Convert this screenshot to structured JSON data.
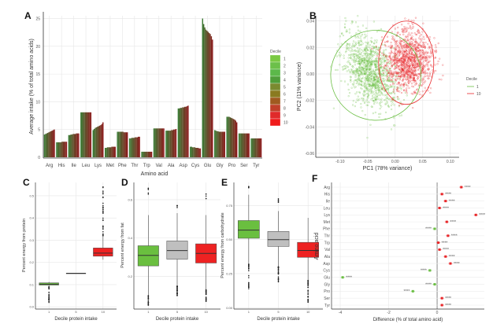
{
  "chart_data": [
    {
      "panel": "A",
      "type": "bar",
      "xlabel": "Amino acid",
      "ylabel": "Average intake (% of total amino acids)",
      "ylim": [
        0,
        25.5
      ],
      "yticks": [
        0,
        5,
        10,
        15,
        20,
        25
      ],
      "grid": true,
      "legend": {
        "title": "Decile",
        "position": "right",
        "entries": [
          "1",
          "2",
          "3",
          "4",
          "5",
          "6",
          "7",
          "8",
          "9",
          "10"
        ],
        "colors": [
          "#7ac943",
          "#6cc04a",
          "#5cb84a",
          "#4f9e3a",
          "#7a8a30",
          "#8a7a20",
          "#a05a20",
          "#c0402a",
          "#e02a2a",
          "#f01c1c"
        ]
      },
      "bar_colors": {
        "decile_1": "#3d7a35",
        "decile_10": "#8a1c1c"
      },
      "categories": [
        "Arg",
        "His",
        "Ile",
        "Leu",
        "Lys",
        "Met",
        "Phe",
        "Thr",
        "Trp",
        "Val",
        "Ala",
        "Asp",
        "Cys",
        "Glu",
        "Gly",
        "Pro",
        "Ser",
        "Tyr"
      ],
      "values_by_decile": [
        [
          4.1,
          4.2,
          4.3,
          4.4,
          4.5,
          4.6,
          4.7,
          4.8,
          4.9,
          5.0
        ],
        [
          2.7,
          2.7,
          2.7,
          2.7,
          2.7,
          2.8,
          2.8,
          2.8,
          2.8,
          2.8
        ],
        [
          4.0,
          4.0,
          4.1,
          4.1,
          4.2,
          4.2,
          4.2,
          4.3,
          4.3,
          4.3
        ],
        [
          8.1,
          8.1,
          8.1,
          8.1,
          8.1,
          8.1,
          8.1,
          8.1,
          8.1,
          8.1
        ],
        [
          4.9,
          5.1,
          5.3,
          5.4,
          5.5,
          5.6,
          5.7,
          5.8,
          6.0,
          6.3
        ],
        [
          1.7,
          1.7,
          1.8,
          1.8,
          1.8,
          1.8,
          1.9,
          1.9,
          1.9,
          1.9
        ],
        [
          4.6,
          4.6,
          4.6,
          4.6,
          4.6,
          4.6,
          4.5,
          4.5,
          4.5,
          4.5
        ],
        [
          3.4,
          3.4,
          3.5,
          3.5,
          3.5,
          3.6,
          3.6,
          3.6,
          3.7,
          3.7
        ],
        [
          1.0,
          1.0,
          1.0,
          1.0,
          1.0,
          1.0,
          1.0,
          1.0,
          1.0,
          1.0
        ],
        [
          5.2,
          5.2,
          5.2,
          5.2,
          5.2,
          5.2,
          5.2,
          5.2,
          5.2,
          5.2
        ],
        [
          4.8,
          4.8,
          4.8,
          4.8,
          4.8,
          4.9,
          4.9,
          5.0,
          5.0,
          5.1
        ],
        [
          8.8,
          8.8,
          8.9,
          8.9,
          9.0,
          9.0,
          9.1,
          9.1,
          9.2,
          9.3
        ],
        [
          1.9,
          1.9,
          1.8,
          1.8,
          1.8,
          1.7,
          1.7,
          1.7,
          1.6,
          1.6
        ],
        [
          25.0,
          24.0,
          23.4,
          23.0,
          22.8,
          22.6,
          22.4,
          22.2,
          21.8,
          21.2
        ],
        [
          4.9,
          4.8,
          4.7,
          4.7,
          4.6,
          4.6,
          4.6,
          4.6,
          4.6,
          4.6
        ],
        [
          7.3,
          7.3,
          7.3,
          7.2,
          7.1,
          7.0,
          6.9,
          6.8,
          6.6,
          6.3
        ],
        [
          4.3,
          4.3,
          4.3,
          4.3,
          4.3,
          4.3,
          4.3,
          4.3,
          4.3,
          4.3
        ],
        [
          3.4,
          3.4,
          3.4,
          3.4,
          3.4,
          3.4,
          3.4,
          3.4,
          3.4,
          3.4
        ]
      ]
    },
    {
      "panel": "B",
      "type": "scatter",
      "xlabel": "PC1 (78% variance)",
      "ylabel": "PC2 (11% variance)",
      "xlim": [
        -0.144,
        0.116
      ],
      "ylim": [
        -0.063,
        0.044
      ],
      "xticks": [
        "-0.10",
        "-0.05",
        "0.00",
        "0.05",
        "0.10"
      ],
      "yticks": [
        "-0.06",
        "-0.04",
        "-0.02",
        "0.00",
        "0.02",
        "0.04"
      ],
      "grid": true,
      "legend": {
        "title": "Decile",
        "position": "right"
      },
      "series": [
        {
          "name": "1",
          "color": "#6cbf45",
          "center": [
            -0.045,
            0.002
          ],
          "spread": [
            0.035,
            0.017
          ],
          "ellipse": {
            "center": [
              -0.035,
              -0.001
            ],
            "radii": [
              0.082,
              0.034
            ]
          }
        },
        {
          "name": "10",
          "color": "#e8272a",
          "center": [
            0.025,
            0.01
          ],
          "spread": [
            0.03,
            0.015
          ],
          "ellipse": {
            "center": [
              0.02,
              0.0085
            ],
            "radii": [
              0.05,
              0.0315
            ]
          }
        }
      ]
    },
    {
      "panel": "C",
      "type": "box",
      "xlabel": "Decile protein intake",
      "ylabel": "Percent energy from protein",
      "ylim": [
        -0.01,
        0.56
      ],
      "yticks": [
        "0.0",
        "0.1",
        "0.2",
        "0.3",
        "0.4",
        "0.5"
      ],
      "categories": [
        "1",
        "5",
        "10"
      ],
      "boxes": [
        {
          "q1": 0.098,
          "median": 0.102,
          "q3": 0.108,
          "lo": 0.09,
          "hi": 0.112,
          "outliers": [
            0.02,
            0.085
          ],
          "color": "#6abf3f"
        },
        {
          "q1": 0.15,
          "median": 0.151,
          "q3": 0.152,
          "lo": 0.15,
          "hi": 0.152,
          "outliers": [],
          "color": "#bfbfbf"
        },
        {
          "q1": 0.228,
          "median": 0.242,
          "q3": 0.265,
          "lo": 0.212,
          "hi": 0.32,
          "outliers": [
            0.32,
            0.54
          ],
          "color": "#ee2222"
        }
      ]
    },
    {
      "panel": "D",
      "type": "box",
      "xlabel": "Decile protein intake",
      "ylabel": "Percent energy from fat",
      "ylim": [
        0.03,
        0.69
      ],
      "yticks": [
        "0.2",
        "0.4",
        "0.6"
      ],
      "categories": [
        "1",
        "5",
        "10"
      ],
      "boxes": [
        {
          "q1": 0.255,
          "median": 0.31,
          "q3": 0.36,
          "lo": 0.1,
          "hi": 0.52,
          "outliers": [
            0.05,
            0.66
          ],
          "color": "#6abf3f"
        },
        {
          "q1": 0.29,
          "median": 0.335,
          "q3": 0.385,
          "lo": 0.15,
          "hi": 0.53,
          "outliers": [
            0.1,
            0.57
          ],
          "color": "#bfbfbf"
        },
        {
          "q1": 0.27,
          "median": 0.32,
          "q3": 0.37,
          "lo": 0.13,
          "hi": 0.52,
          "outliers": [
            0.07,
            0.63
          ],
          "color": "#ee2222"
        }
      ]
    },
    {
      "panel": "E",
      "type": "box",
      "xlabel": "Decile protein intake",
      "ylabel": "Percent energy from carbohydrate",
      "ylim": [
        -0.01,
        0.92
      ],
      "yticks": [
        "0.00",
        "0.25",
        "0.50",
        "0.75"
      ],
      "categories": [
        "1",
        "5",
        "10"
      ],
      "boxes": [
        {
          "q1": 0.51,
          "median": 0.57,
          "q3": 0.64,
          "lo": 0.32,
          "hi": 0.83,
          "outliers": [
            0.14,
            0.89
          ],
          "color": "#6abf3f"
        },
        {
          "q1": 0.45,
          "median": 0.5,
          "q3": 0.56,
          "lo": 0.3,
          "hi": 0.71,
          "outliers": [
            0.19,
            0.8
          ],
          "color": "#bfbfbf"
        },
        {
          "q1": 0.37,
          "median": 0.42,
          "q3": 0.48,
          "lo": 0.2,
          "hi": 0.66,
          "outliers": [
            0.04,
            0.19
          ],
          "color": "#ee2222"
        }
      ]
    },
    {
      "panel": "F",
      "type": "dot",
      "xlabel": "Difference (% of total amino acid)",
      "ylabel": "Amino acid",
      "xlim": [
        -4.36,
        1.95
      ],
      "xticks": [
        -4,
        -2,
        0
      ],
      "categories": [
        "Arg",
        "His",
        "Ile",
        "Leu",
        "Lys",
        "Met",
        "Phe",
        "Thr",
        "Trp",
        "Val",
        "Ala",
        "Asp",
        "Cys",
        "Glu",
        "Gly",
        "Pro",
        "Ser",
        "Tyr"
      ],
      "values": [
        1.0,
        0.2,
        0.35,
        0.1,
        1.6,
        0.4,
        -0.1,
        0.45,
        0.05,
        0.1,
        0.35,
        0.55,
        -0.3,
        -3.9,
        -0.1,
        -1.0,
        0.2,
        0.2
      ],
      "significance": "****",
      "colors": {
        "positive": "#e8272a",
        "negative": "#6cbf45"
      }
    }
  ],
  "panel_letters": [
    "A",
    "B",
    "C",
    "D",
    "E",
    "F"
  ]
}
